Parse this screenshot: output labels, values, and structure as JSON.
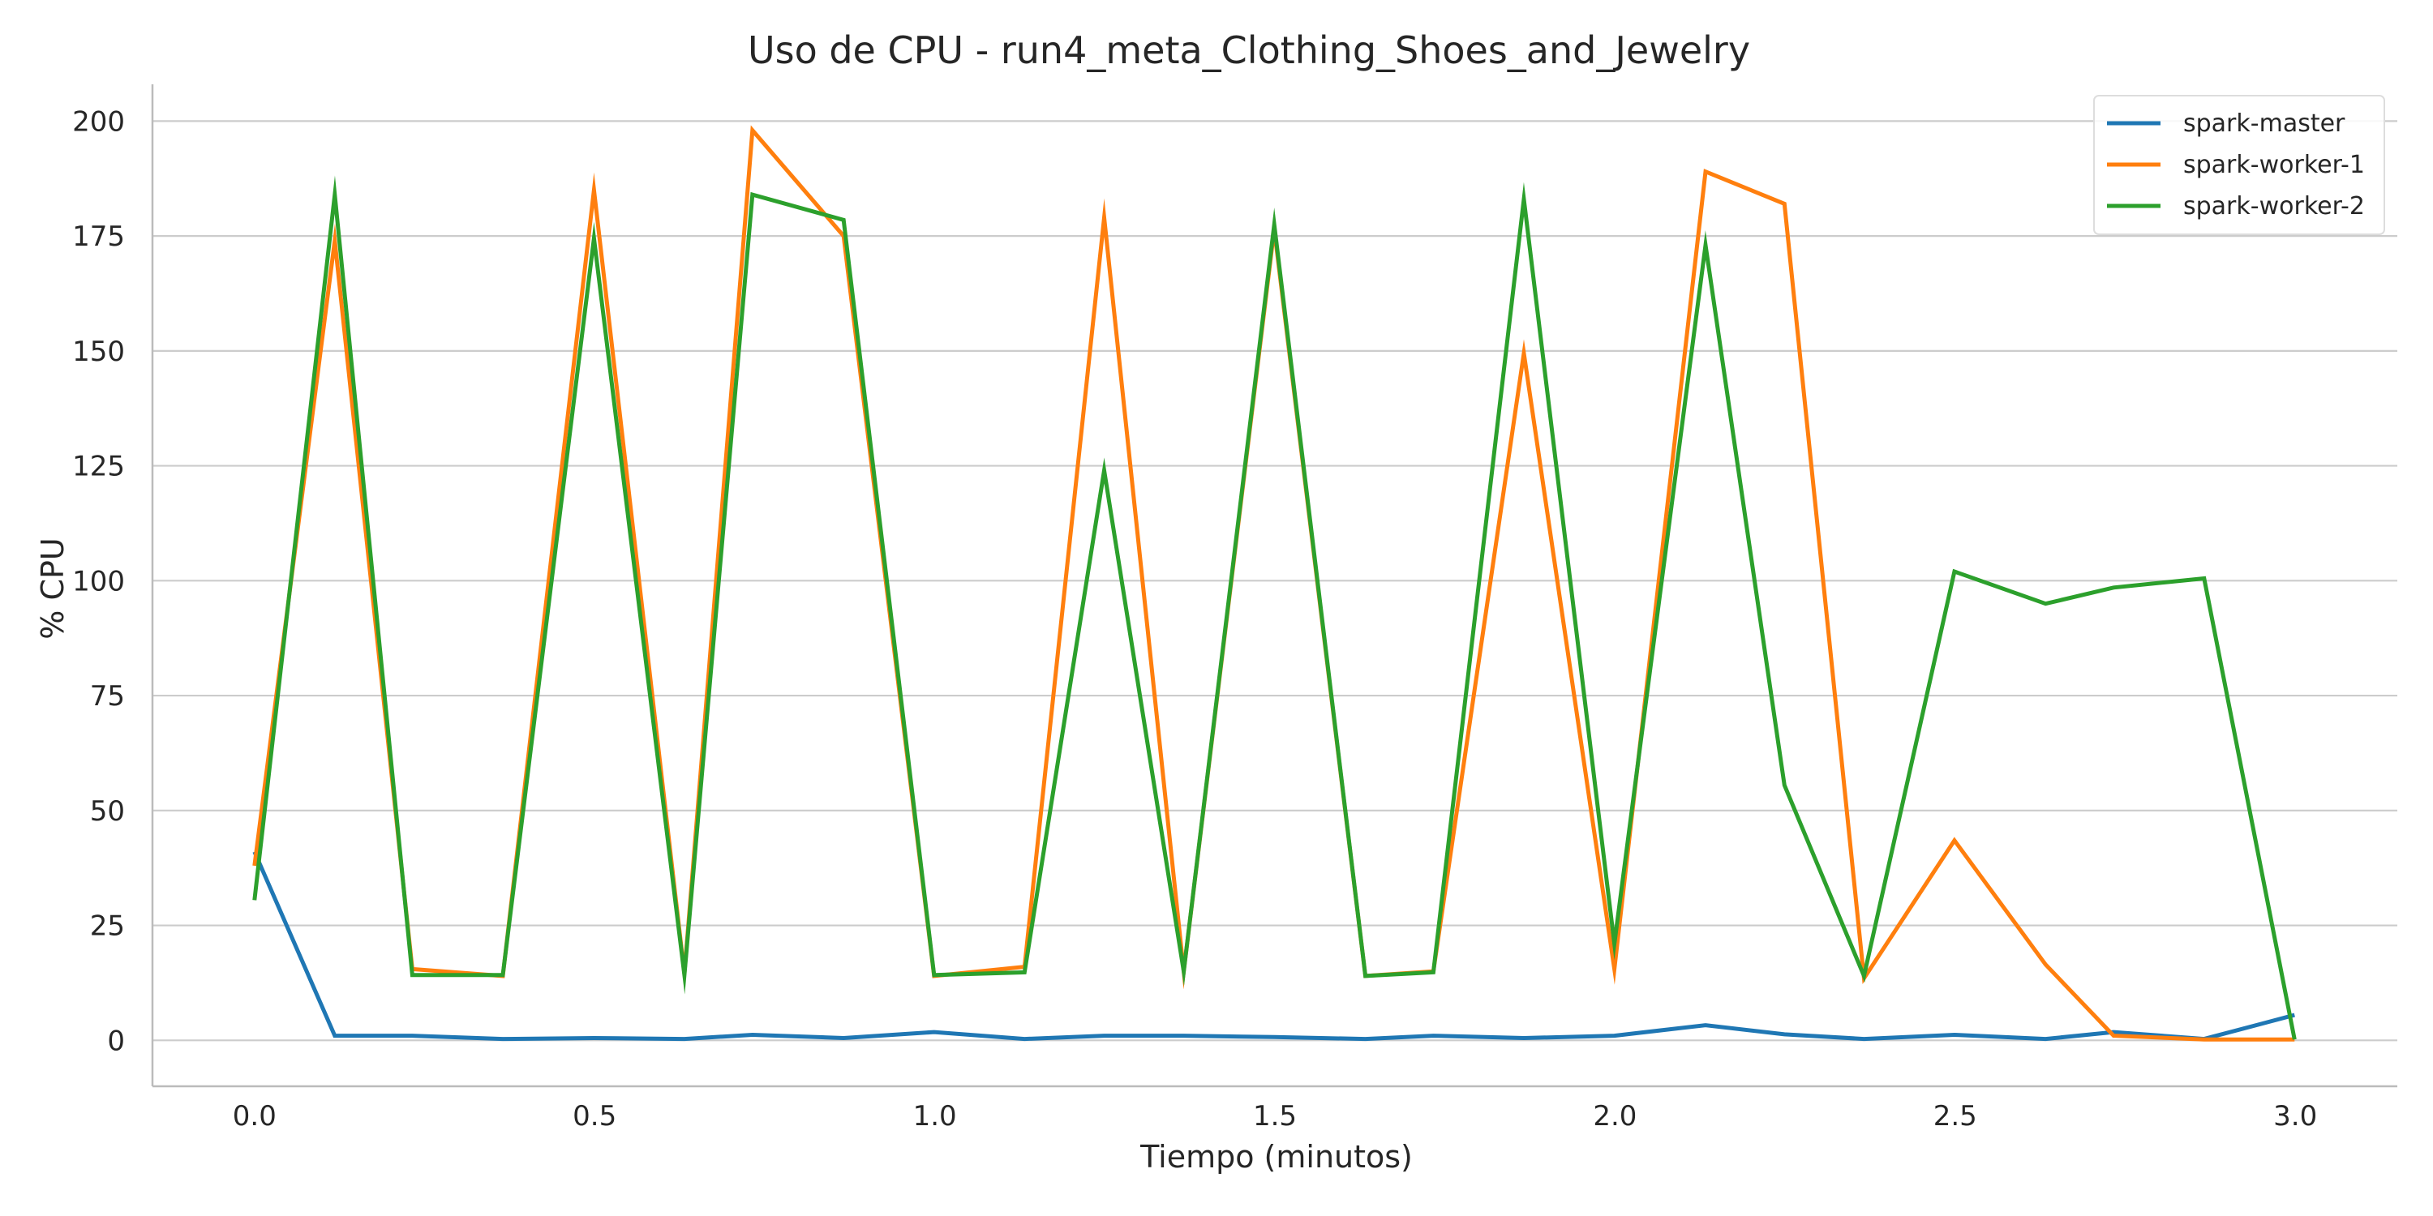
{
  "chart_data": {
    "type": "line",
    "title": "Uso de CPU - run4_meta_Clothing_Shoes_and_Jewelry",
    "xlabel": "Tiempo (minutos)",
    "ylabel": "% CPU",
    "xlim": [
      -0.15,
      3.15
    ],
    "ylim": [
      -10,
      208
    ],
    "xticks": [
      0.0,
      0.5,
      1.0,
      1.5,
      2.0,
      2.5,
      3.0
    ],
    "xtick_labels": [
      "0.0",
      "0.5",
      "1.0",
      "1.5",
      "2.0",
      "2.5",
      "3.0"
    ],
    "yticks": [
      0,
      25,
      50,
      75,
      100,
      125,
      150,
      175,
      200
    ],
    "ytick_labels": [
      "0",
      "25",
      "50",
      "75",
      "100",
      "125",
      "150",
      "175",
      "200"
    ],
    "grid": "horizontal",
    "legend_position": "top-right",
    "x": [
      0.0,
      0.118,
      0.232,
      0.365,
      0.499,
      0.632,
      0.732,
      0.866,
      0.999,
      1.132,
      1.249,
      1.366,
      1.499,
      1.633,
      1.733,
      1.866,
      1.999,
      2.133,
      2.249,
      2.366,
      2.499,
      2.633,
      2.733,
      2.866,
      2.999
    ],
    "series": [
      {
        "name": "spark-master",
        "color": "#1f77b4",
        "values": [
          41.0,
          1.0,
          1.0,
          0.3,
          0.5,
          0.3,
          1.2,
          0.5,
          1.8,
          0.3,
          1.0,
          1.0,
          0.7,
          0.3,
          1.0,
          0.5,
          1.0,
          3.3,
          1.3,
          0.3,
          1.2,
          0.3,
          1.8,
          0.3,
          5.5
        ]
      },
      {
        "name": "spark-worker-1",
        "color": "#ff7f0e",
        "values": [
          38.0,
          174.0,
          15.5,
          14.0,
          185.0,
          14.5,
          198.0,
          175.0,
          14.0,
          16.0,
          179.0,
          15.0,
          176.5,
          14.0,
          15.0,
          149.5,
          15.5,
          189.0,
          182.0,
          13.5,
          43.5,
          16.5,
          1.0,
          0.2,
          0.2
        ]
      },
      {
        "name": "spark-worker-2",
        "color": "#2ca02c",
        "values": [
          30.5,
          184.0,
          14.2,
          14.2,
          174.5,
          14.2,
          184.0,
          178.5,
          14.2,
          14.8,
          124.0,
          15.0,
          177.5,
          14.0,
          14.8,
          183.0,
          21.0,
          173.0,
          55.5,
          14.0,
          102.0,
          95.0,
          98.5,
          100.5,
          0.2
        ]
      }
    ]
  }
}
